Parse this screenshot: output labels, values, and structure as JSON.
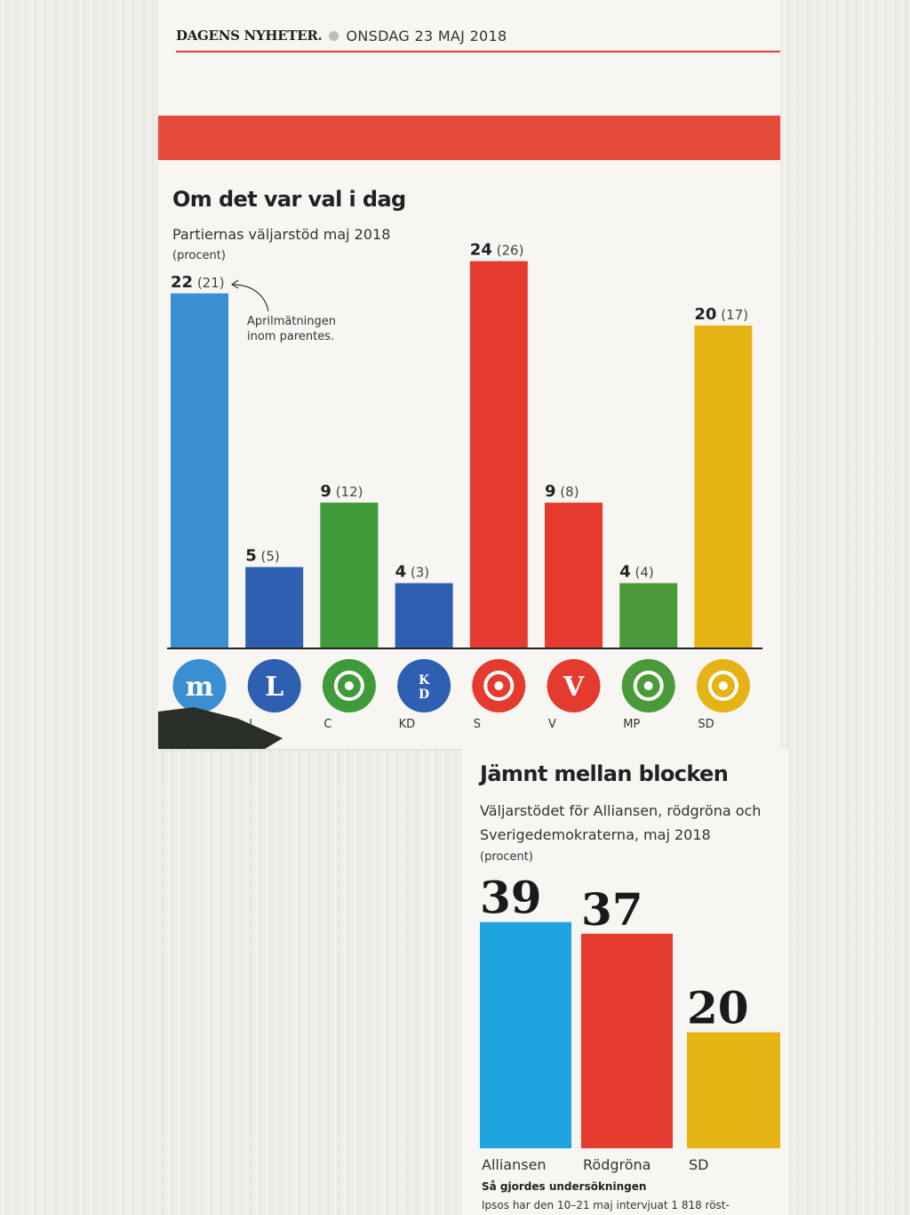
{
  "header": {
    "paper": "DAGENS NYHETER.",
    "date": "ONSDAG 23 MAJ 2018"
  },
  "chart_data": [
    {
      "type": "bar",
      "title": "Om det var val i dag",
      "subtitle": "Partiernas väljarstöd maj 2018",
      "unit": "(procent)",
      "annotation": "Aprilmätningen inom parentes.",
      "categories": [
        "M",
        "L",
        "C",
        "KD",
        "S",
        "V",
        "MP",
        "SD"
      ],
      "tick_labels": [
        "",
        "L",
        "C",
        "KD",
        "S",
        "V",
        "MP",
        "SD"
      ],
      "values": [
        22,
        5,
        9,
        4,
        24,
        9,
        4,
        20
      ],
      "previous": [
        "(21)",
        "(5)",
        "(12)",
        "(3)",
        "(26)",
        "(8)",
        "(4)",
        "(17)"
      ],
      "colors": [
        "#3a8fd0",
        "#2f5fb0",
        "#3f9a3a",
        "#2f5fb0",
        "#e53a2e",
        "#e53a2e",
        "#4a9a3a",
        "#e5b314"
      ],
      "icons": [
        "moderaterna-logo-icon",
        "liberalerna-logo-icon",
        "centerpartiet-logo-icon",
        "kristdemokraterna-logo-icon",
        "socialdemokraterna-logo-icon",
        "vansterpartiet-logo-icon",
        "miljopartiet-logo-icon",
        "sverigedemokraterna-logo-icon"
      ],
      "logo_text": {
        "M": "m",
        "L": "L",
        "KD": "K\nD",
        "V": "V"
      },
      "ylim": [
        0,
        25
      ]
    },
    {
      "type": "bar",
      "title": "Jämnt mellan blocken",
      "subtitle": "Väljarstödet för Alliansen, rödgröna och Sverigedemokraterna, maj 2018",
      "unit": "(procent)",
      "categories": [
        "Alliansen",
        "Rödgröna",
        "SD"
      ],
      "values": [
        39,
        37,
        20
      ],
      "colors": [
        "#1fa4e0",
        "#e53a2e",
        "#e5b314"
      ],
      "ylim": [
        0,
        45
      ]
    }
  ],
  "method": {
    "title": "Så gjordes undersökningen",
    "text": "Ipsos har den 10–21 maj intervjuat 1 818 röst-"
  }
}
